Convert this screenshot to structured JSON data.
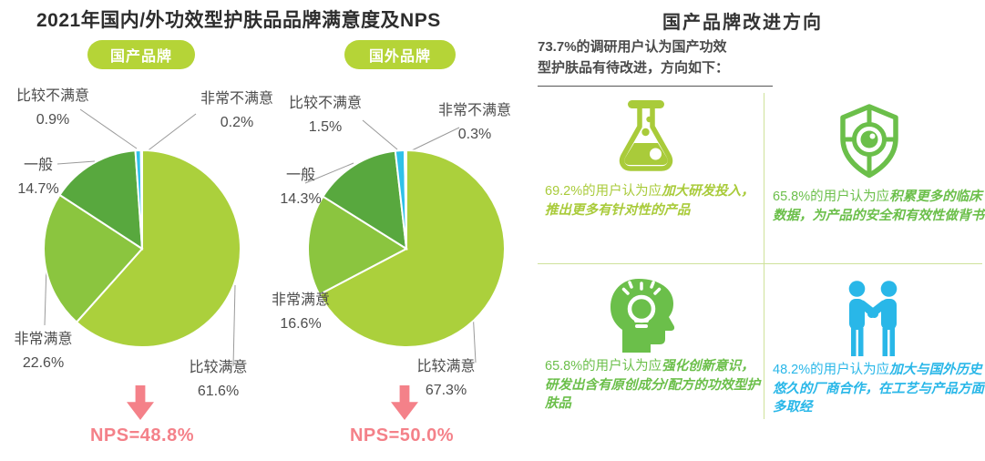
{
  "page": {
    "left_title": "2021年国内/外功效型护肤品品牌满意度及NPS",
    "right_title": "国产品牌改进方向",
    "right_intro": "73.7%的调研用户认为国产功效\n型护肤品有待改进，方向如下：",
    "badge_color": "#b5d437",
    "divider_color": "#cfe29b",
    "label_text_color": "#4d4d4d"
  },
  "chart_data": [
    {
      "type": "pie",
      "title": "国产品牌",
      "labels": [
        "比较满意",
        "非常满意",
        "一般",
        "比较不满意",
        "非常不满意"
      ],
      "values": [
        61.6,
        22.6,
        14.7,
        0.9,
        0.2
      ],
      "pct": [
        "61.6%",
        "22.6%",
        "14.7%",
        "0.9%",
        "0.2%"
      ],
      "colors": [
        "#abd03c",
        "#8bc53f",
        "#58a83e",
        "#2fc1e9",
        "#ffffff"
      ],
      "start_angle": "12-oclock",
      "direction": "clockwise",
      "annotation": "NPS=48.8%",
      "annotation_color": "#f48189"
    },
    {
      "type": "pie",
      "title": "国外品牌",
      "labels": [
        "比较满意",
        "非常满意",
        "一般",
        "比较不满意",
        "非常不满意"
      ],
      "values": [
        67.3,
        16.6,
        14.3,
        1.5,
        0.3
      ],
      "pct": [
        "67.3%",
        "16.6%",
        "14.3%",
        "1.5%",
        "0.3%"
      ],
      "colors": [
        "#abd03c",
        "#8bc53f",
        "#58a83e",
        "#2fc1e9",
        "#ffffff"
      ],
      "start_angle": "12-oclock",
      "direction": "clockwise",
      "annotation": "NPS=50.0%",
      "annotation_color": "#f48189"
    }
  ],
  "improvements": {
    "items": [
      {
        "icon": "flask-icon",
        "prefix": "69.2%的用户认为应",
        "emphasis": "加大研发投入，推出更多有针对性的产品",
        "color": "#a9cb3a"
      },
      {
        "icon": "shield-eye-icon",
        "prefix": "65.8%的用户认为应",
        "emphasis": "积累更多的临床数据，为产品的安全和有效性做背书",
        "color": "#6bbf4a"
      },
      {
        "icon": "head-bulb-icon",
        "prefix": "65.8%的用户认为应",
        "emphasis": "强化创新意识，研发出含有原创成分/配方的功效型护肤品",
        "color": "#6bbf4a"
      },
      {
        "icon": "handshake-icon",
        "prefix": "48.2%的用户认为应",
        "emphasis": "加大与国外历史悠久的厂商合作，在工艺与产品方面多取经",
        "color": "#29b7e8"
      }
    ]
  }
}
